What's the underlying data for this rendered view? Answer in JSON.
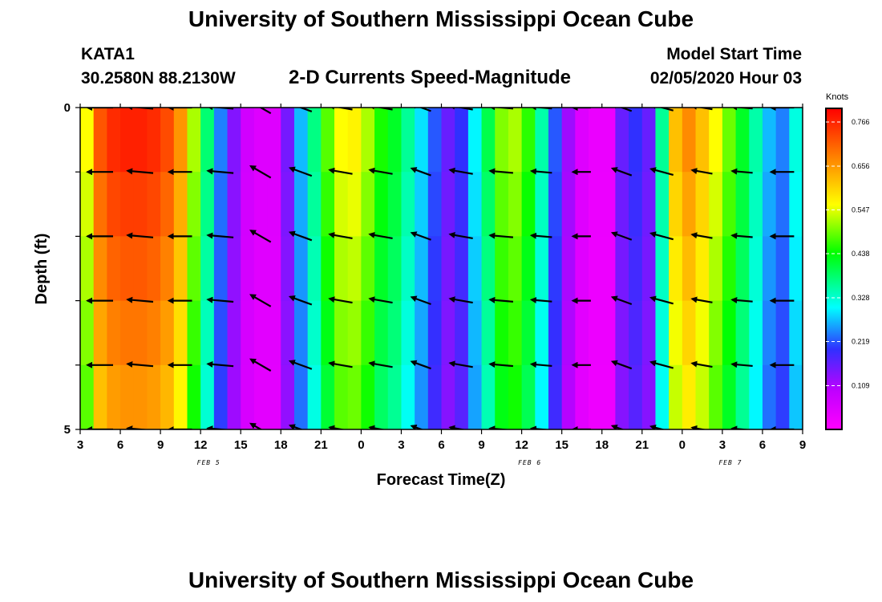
{
  "header": {
    "title": "University of Southern Mississippi Ocean Cube",
    "station_id": "KATA1",
    "station_coords": "30.2580N 88.2130W",
    "plot_title": "2-D Currents Speed-Magnitude",
    "model_start_label": "Model Start Time",
    "model_start_value": "02/05/2020 Hour 03"
  },
  "footer": {
    "title": "University of Southern Mississippi Ocean Cube"
  },
  "chart_data": {
    "type": "heatmap",
    "title": "2-D Currents Speed-Magnitude",
    "xlabel": "Forecast Time(Z)",
    "ylabel": "Depth (ft)",
    "x_tick_labels": [
      "3",
      "6",
      "9",
      "12",
      "15",
      "18",
      "21",
      "0",
      "3",
      "6",
      "9",
      "12",
      "15",
      "18",
      "21",
      "0",
      "3",
      "6",
      "9"
    ],
    "date_labels": [
      {
        "after_tick_index": 3,
        "label": "FEB 5"
      },
      {
        "after_tick_index": 11,
        "label": "FEB 6"
      },
      {
        "after_tick_index": 16,
        "label": "FEB 7"
      }
    ],
    "xlim_hours": [
      0,
      54
    ],
    "y_tick_labels": [
      "0",
      "5"
    ],
    "ylim_ft": [
      0,
      5
    ],
    "colorbar": {
      "unit": "Knots",
      "min": 0,
      "max": 0.8,
      "tick_labels": [
        "0.766",
        "0.656",
        "0.547",
        "0.438",
        "0.328",
        "0.219",
        "0.109"
      ],
      "tick_values": [
        0.766,
        0.656,
        0.547,
        0.438,
        0.328,
        0.219,
        0.109
      ]
    },
    "speed_profile": {
      "hours": [
        0,
        1,
        2,
        3,
        4,
        5,
        6,
        7,
        8,
        9,
        10,
        11,
        12,
        13,
        14,
        15,
        16,
        17,
        18,
        19,
        20,
        21,
        22,
        23,
        24,
        25,
        26,
        27,
        28,
        29,
        30,
        31,
        32,
        33,
        34,
        35,
        36,
        37,
        38,
        39,
        40,
        41,
        42,
        43,
        44,
        45,
        46,
        47,
        48,
        49,
        50,
        51,
        52,
        53,
        54
      ],
      "knots": [
        0.56,
        0.72,
        0.76,
        0.77,
        0.77,
        0.76,
        0.73,
        0.66,
        0.52,
        0.38,
        0.24,
        0.14,
        0.07,
        0.05,
        0.05,
        0.15,
        0.27,
        0.37,
        0.48,
        0.56,
        0.57,
        0.52,
        0.45,
        0.42,
        0.36,
        0.29,
        0.22,
        0.16,
        0.2,
        0.3,
        0.4,
        0.5,
        0.52,
        0.46,
        0.35,
        0.22,
        0.12,
        0.05,
        0.03,
        0.03,
        0.16,
        0.2,
        0.16,
        0.36,
        0.62,
        0.67,
        0.62,
        0.56,
        0.49,
        0.42,
        0.35,
        0.27,
        0.24,
        0.32,
        0.36
      ]
    },
    "arrows": {
      "hours": [
        1.5,
        4.5,
        7.5,
        10.5,
        13.5,
        16.5,
        19.5,
        22.5,
        25.5,
        28.5,
        31.5,
        34.5,
        37.5,
        40.5,
        43.5,
        46.5,
        49.5,
        52.5
      ],
      "depths_ft": [
        0,
        1,
        2,
        3,
        4,
        5
      ],
      "directions_deg": [
        270,
        275,
        270,
        275,
        300,
        290,
        280,
        280,
        290,
        280,
        275,
        275,
        270,
        290,
        285,
        280,
        275,
        270
      ],
      "relative_length": [
        1.0,
        1.0,
        0.9,
        1.0,
        0.9,
        0.9,
        0.9,
        0.9,
        0.8,
        0.9,
        0.9,
        0.8,
        0.7,
        0.8,
        0.9,
        0.8,
        0.8,
        0.9
      ]
    }
  }
}
